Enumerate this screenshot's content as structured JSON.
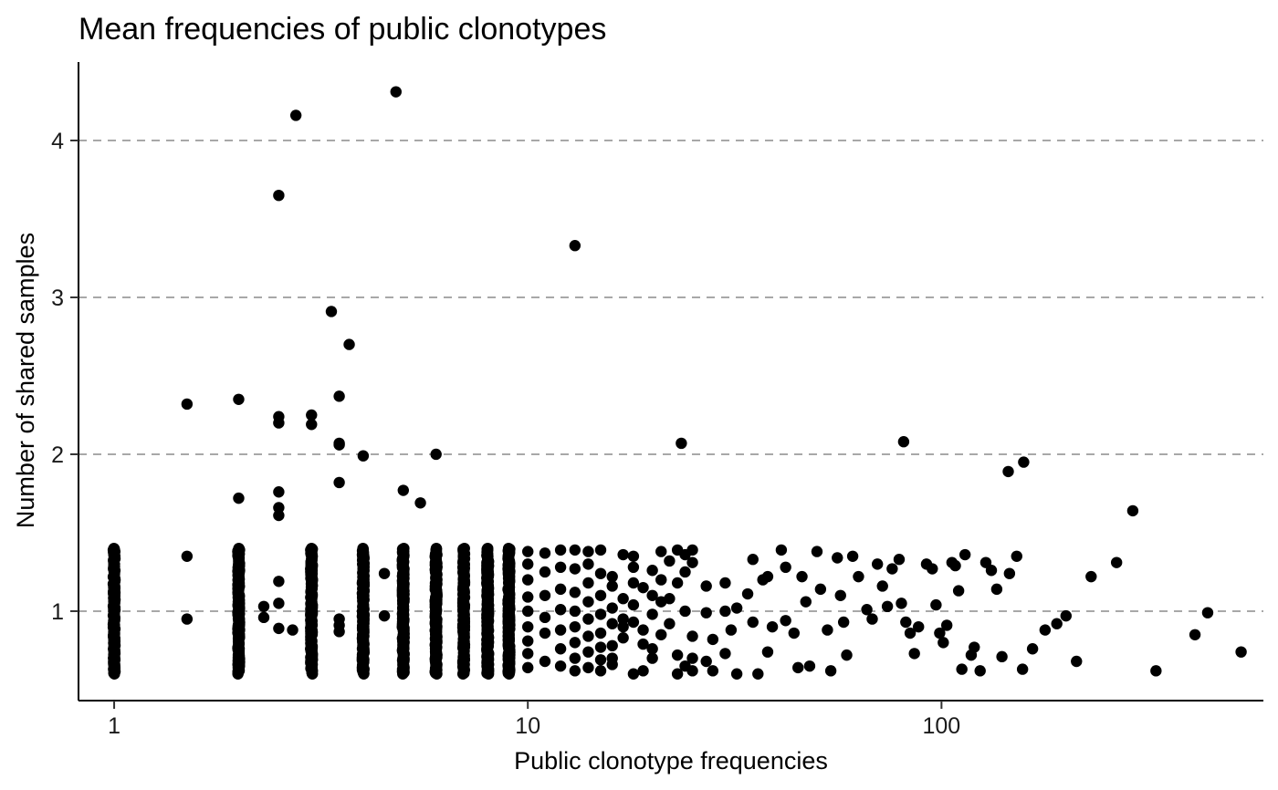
{
  "chart_data": {
    "type": "scatter",
    "title": "Mean frequencies of public clonotypes",
    "xlabel": "Public clonotype frequencies",
    "ylabel": "Number of shared samples",
    "x_scale": "log10",
    "xlim": [
      0.82,
      600
    ],
    "ylim": [
      0.43,
      4.5
    ],
    "x_ticks": [
      1,
      10,
      100
    ],
    "x_tick_labels": [
      "1",
      "10",
      "100"
    ],
    "y_ticks": [
      1,
      2,
      3,
      4
    ],
    "y_tick_labels": [
      "1",
      "2",
      "3",
      "4"
    ],
    "grid": "horizontal dashed at y ticks",
    "point_color": "#000000",
    "grid_color": "#a8a8a8",
    "jitter_columns": [
      {
        "x": 1,
        "ymin": 0.6,
        "ymax": 1.4
      },
      {
        "x": 2,
        "ymin": 0.6,
        "ymax": 1.4
      },
      {
        "x": 3,
        "ymin": 0.6,
        "ymax": 1.4
      },
      {
        "x": 4,
        "ymin": 0.6,
        "ymax": 1.4
      },
      {
        "x": 5,
        "ymin": 0.6,
        "ymax": 1.4
      },
      {
        "x": 6,
        "ymin": 0.6,
        "ymax": 1.4
      },
      {
        "x": 7,
        "ymin": 0.6,
        "ymax": 1.4
      },
      {
        "x": 8,
        "ymin": 0.6,
        "ymax": 1.4
      },
      {
        "x": 9,
        "ymin": 0.6,
        "ymax": 1.4
      }
    ],
    "points": [
      [
        4.8,
        4.31
      ],
      [
        2.75,
        4.16
      ],
      [
        2.5,
        3.65
      ],
      [
        13,
        3.33
      ],
      [
        3.35,
        2.91
      ],
      [
        3.7,
        2.7
      ],
      [
        1.5,
        2.32
      ],
      [
        2,
        2.35
      ],
      [
        2.5,
        2.24
      ],
      [
        2.5,
        2.2
      ],
      [
        3,
        2.25
      ],
      [
        3,
        2.19
      ],
      [
        3.5,
        2.37
      ],
      [
        3.5,
        2.07
      ],
      [
        3.5,
        2.06
      ],
      [
        4,
        1.99
      ],
      [
        6,
        2.0
      ],
      [
        23.5,
        2.07
      ],
      [
        81,
        2.08
      ],
      [
        2,
        1.72
      ],
      [
        2.5,
        1.76
      ],
      [
        2.5,
        1.66
      ],
      [
        2.5,
        1.61
      ],
      [
        3.5,
        1.82
      ],
      [
        5,
        1.77
      ],
      [
        5.5,
        1.69
      ],
      [
        145,
        1.89
      ],
      [
        158,
        1.95
      ],
      [
        290,
        1.64
      ],
      [
        1.5,
        1.35
      ],
      [
        1.5,
        0.95
      ],
      [
        2.5,
        1.19
      ],
      [
        2.5,
        1.05
      ],
      [
        2.5,
        0.89
      ],
      [
        2.3,
        1.03
      ],
      [
        2.3,
        0.96
      ],
      [
        2.7,
        0.88
      ],
      [
        3.5,
        0.95
      ],
      [
        3.5,
        0.91
      ],
      [
        3.5,
        0.87
      ],
      [
        4.5,
        1.24
      ],
      [
        4.5,
        0.97
      ],
      [
        10,
        1.38
      ],
      [
        10,
        1.3
      ],
      [
        10,
        1.2
      ],
      [
        10,
        1.09
      ],
      [
        10,
        1.0
      ],
      [
        10,
        0.9
      ],
      [
        10,
        0.81
      ],
      [
        10,
        0.73
      ],
      [
        10,
        0.64
      ],
      [
        11,
        1.37
      ],
      [
        11,
        1.25
      ],
      [
        11,
        1.1
      ],
      [
        11,
        0.96
      ],
      [
        11,
        0.86
      ],
      [
        11,
        0.68
      ],
      [
        12,
        1.39
      ],
      [
        12,
        1.28
      ],
      [
        12,
        1.14
      ],
      [
        12,
        1.01
      ],
      [
        12,
        0.88
      ],
      [
        12,
        0.76
      ],
      [
        12,
        0.65
      ],
      [
        13,
        1.39
      ],
      [
        13,
        1.27
      ],
      [
        13,
        1.12
      ],
      [
        13,
        1.0
      ],
      [
        13,
        0.9
      ],
      [
        13,
        0.8
      ],
      [
        13,
        0.7
      ],
      [
        13,
        0.62
      ],
      [
        14,
        1.38
      ],
      [
        14,
        1.3
      ],
      [
        14,
        1.18
      ],
      [
        14,
        1.06
      ],
      [
        14,
        0.95
      ],
      [
        14,
        0.84
      ],
      [
        14,
        0.74
      ],
      [
        14,
        0.64
      ],
      [
        15,
        1.39
      ],
      [
        15,
        1.24
      ],
      [
        15,
        1.1
      ],
      [
        15,
        0.98
      ],
      [
        15,
        0.86
      ],
      [
        15,
        0.77
      ],
      [
        15,
        0.69
      ],
      [
        15,
        0.62
      ],
      [
        16,
        1.22
      ],
      [
        16,
        1.16
      ],
      [
        16,
        1.02
      ],
      [
        16,
        0.92
      ],
      [
        16,
        0.78
      ],
      [
        16,
        0.7
      ],
      [
        16,
        0.66
      ],
      [
        17,
        1.36
      ],
      [
        17,
        1.08
      ],
      [
        17,
        0.95
      ],
      [
        17,
        0.9
      ],
      [
        17,
        0.83
      ],
      [
        18,
        1.35
      ],
      [
        18,
        1.28
      ],
      [
        18,
        1.18
      ],
      [
        18,
        1.04
      ],
      [
        18,
        0.93
      ],
      [
        18,
        0.6
      ],
      [
        19,
        1.15
      ],
      [
        19,
        0.88
      ],
      [
        19,
        0.79
      ],
      [
        19,
        0.62
      ],
      [
        20,
        1.26
      ],
      [
        20,
        1.1
      ],
      [
        20,
        0.98
      ],
      [
        20,
        0.76
      ],
      [
        20,
        0.7
      ],
      [
        21,
        1.38
      ],
      [
        21,
        1.2
      ],
      [
        21,
        1.06
      ],
      [
        21,
        0.85
      ],
      [
        22,
        1.32
      ],
      [
        22,
        1.08
      ],
      [
        22,
        0.92
      ],
      [
        23,
        1.39
      ],
      [
        23,
        1.18
      ],
      [
        23,
        0.72
      ],
      [
        23,
        0.6
      ],
      [
        24,
        1.36
      ],
      [
        24,
        1.25
      ],
      [
        24,
        1.0
      ],
      [
        24,
        0.65
      ],
      [
        25,
        1.39
      ],
      [
        25,
        1.31
      ],
      [
        25,
        0.84
      ],
      [
        25,
        0.7
      ],
      [
        25,
        0.62
      ],
      [
        27,
        1.16
      ],
      [
        27,
        0.99
      ],
      [
        27,
        0.68
      ],
      [
        28,
        0.82
      ],
      [
        28,
        0.62
      ],
      [
        30,
        1.18
      ],
      [
        30,
        1.0
      ],
      [
        30,
        0.73
      ],
      [
        31,
        0.88
      ],
      [
        32,
        1.02
      ],
      [
        32,
        0.6
      ],
      [
        34,
        1.11
      ],
      [
        35,
        1.33
      ],
      [
        35,
        0.93
      ],
      [
        36,
        0.6
      ],
      [
        37,
        1.2
      ],
      [
        38,
        1.22
      ],
      [
        38,
        0.74
      ],
      [
        39,
        0.9
      ],
      [
        41,
        1.39
      ],
      [
        42,
        1.28
      ],
      [
        42,
        0.94
      ],
      [
        44,
        0.86
      ],
      [
        45,
        0.64
      ],
      [
        46,
        1.22
      ],
      [
        47,
        1.06
      ],
      [
        48,
        0.65
      ],
      [
        50,
        1.38
      ],
      [
        51,
        1.14
      ],
      [
        53,
        0.88
      ],
      [
        54,
        0.62
      ],
      [
        56,
        1.34
      ],
      [
        57,
        1.1
      ],
      [
        58,
        0.93
      ],
      [
        59,
        0.72
      ],
      [
        61,
        1.35
      ],
      [
        63,
        1.22
      ],
      [
        66,
        1.01
      ],
      [
        68,
        0.95
      ],
      [
        70,
        1.3
      ],
      [
        72,
        1.16
      ],
      [
        74,
        1.03
      ],
      [
        76,
        1.27
      ],
      [
        79,
        1.33
      ],
      [
        80,
        1.05
      ],
      [
        82,
        0.93
      ],
      [
        84,
        0.86
      ],
      [
        86,
        0.73
      ],
      [
        88,
        0.9
      ],
      [
        92,
        1.3
      ],
      [
        95,
        1.27
      ],
      [
        97,
        1.04
      ],
      [
        99,
        0.86
      ],
      [
        101,
        0.8
      ],
      [
        103,
        0.91
      ],
      [
        106,
        1.31
      ],
      [
        108,
        1.29
      ],
      [
        110,
        1.13
      ],
      [
        112,
        0.63
      ],
      [
        114,
        1.36
      ],
      [
        118,
        0.72
      ],
      [
        120,
        0.77
      ],
      [
        124,
        0.62
      ],
      [
        128,
        1.31
      ],
      [
        132,
        1.26
      ],
      [
        136,
        1.14
      ],
      [
        140,
        0.71
      ],
      [
        146,
        1.24
      ],
      [
        152,
        1.35
      ],
      [
        157,
        0.63
      ],
      [
        166,
        0.76
      ],
      [
        178,
        0.88
      ],
      [
        190,
        0.92
      ],
      [
        200,
        0.97
      ],
      [
        212,
        0.68
      ],
      [
        230,
        1.22
      ],
      [
        265,
        1.31
      ],
      [
        330,
        0.62
      ],
      [
        410,
        0.85
      ],
      [
        440,
        0.99
      ],
      [
        530,
        0.74
      ]
    ]
  }
}
